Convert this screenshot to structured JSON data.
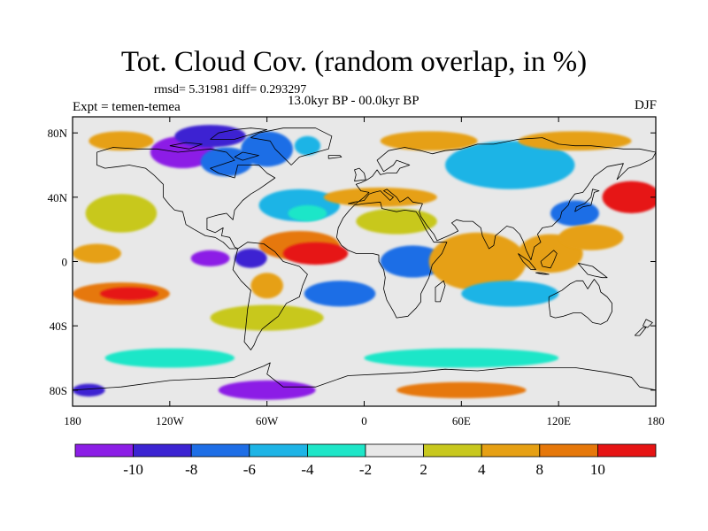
{
  "header": {
    "title": "Tot. Cloud Cov. (random overlap, in %)",
    "stats": "rmsd= 5.31981 diff= 0.293297",
    "period": "13.0kyr BP - 00.0kyr BP",
    "experiment": "Expt = temen-temea",
    "season": "DJF"
  },
  "map": {
    "projection": "cylindrical equidistant",
    "lon_range": [
      -180,
      180
    ],
    "lat_range": [
      -90,
      90
    ],
    "lon_ticks": [
      {
        "value": -180,
        "label": "180"
      },
      {
        "value": -120,
        "label": "120W"
      },
      {
        "value": -60,
        "label": "60W"
      },
      {
        "value": 0,
        "label": "0"
      },
      {
        "value": 60,
        "label": "60E"
      },
      {
        "value": 120,
        "label": "120E"
      },
      {
        "value": 180,
        "label": "180"
      }
    ],
    "lat_ticks": [
      {
        "value": 80,
        "label": "80N"
      },
      {
        "value": 40,
        "label": "40N"
      },
      {
        "value": 0,
        "label": "0"
      },
      {
        "value": -40,
        "label": "40S"
      },
      {
        "value": -80,
        "label": "80S"
      }
    ],
    "background_color": "#e8e8e8"
  },
  "colorbar": {
    "levels": [
      -10,
      -8,
      -6,
      -4,
      -2,
      2,
      4,
      8,
      10
    ],
    "labels": [
      "-10",
      "-8",
      "-6",
      "-4",
      "-2",
      "2",
      "4",
      "8",
      "10"
    ],
    "colors": [
      "#8c1ee6",
      "#3c24d2",
      "#1e6ee6",
      "#1eb4e6",
      "#1ee6c8",
      "#e8e8e8",
      "#c8c81e",
      "#e6a014",
      "#e6780a",
      "#e61414"
    ]
  },
  "anomalies": [
    {
      "lon": -112,
      "lat": 68,
      "rx": 20,
      "ry": 10,
      "color": "#8c1ee6"
    },
    {
      "lon": -95,
      "lat": 78,
      "rx": 22,
      "ry": 7,
      "color": "#3c24d2"
    },
    {
      "lon": -85,
      "lat": 62,
      "rx": 16,
      "ry": 9,
      "color": "#1e6ee6"
    },
    {
      "lon": -60,
      "lat": 70,
      "rx": 16,
      "ry": 11,
      "color": "#1e6ee6"
    },
    {
      "lon": -35,
      "lat": 72,
      "rx": 8,
      "ry": 6,
      "color": "#1eb4e6"
    },
    {
      "lon": -150,
      "lat": 30,
      "rx": 22,
      "ry": 12,
      "color": "#c8c81e"
    },
    {
      "lon": -165,
      "lat": 5,
      "rx": 15,
      "ry": 6,
      "color": "#e6a014"
    },
    {
      "lon": -150,
      "lat": -20,
      "rx": 30,
      "ry": 7,
      "color": "#e6780a"
    },
    {
      "lon": -145,
      "lat": -20,
      "rx": 18,
      "ry": 4,
      "color": "#e61414"
    },
    {
      "lon": -60,
      "lat": -35,
      "rx": 35,
      "ry": 8,
      "color": "#c8c81e"
    },
    {
      "lon": -40,
      "lat": 35,
      "rx": 25,
      "ry": 10,
      "color": "#1eb4e6"
    },
    {
      "lon": -35,
      "lat": 30,
      "rx": 12,
      "ry": 5,
      "color": "#1ee6c8"
    },
    {
      "lon": -40,
      "lat": 10,
      "rx": 25,
      "ry": 9,
      "color": "#e6780a"
    },
    {
      "lon": -30,
      "lat": 5,
      "rx": 20,
      "ry": 7,
      "color": "#e61414"
    },
    {
      "lon": -95,
      "lat": 2,
      "rx": 12,
      "ry": 5,
      "color": "#8c1ee6"
    },
    {
      "lon": -70,
      "lat": 2,
      "rx": 10,
      "ry": 6,
      "color": "#3c24d2"
    },
    {
      "lon": -60,
      "lat": -15,
      "rx": 10,
      "ry": 8,
      "color": "#e6a014"
    },
    {
      "lon": -15,
      "lat": -20,
      "rx": 22,
      "ry": 8,
      "color": "#1e6ee6"
    },
    {
      "lon": 30,
      "lat": 0,
      "rx": 20,
      "ry": 10,
      "color": "#1e6ee6"
    },
    {
      "lon": 20,
      "lat": 25,
      "rx": 25,
      "ry": 8,
      "color": "#c8c81e"
    },
    {
      "lon": 10,
      "lat": 40,
      "rx": 35,
      "ry": 6,
      "color": "#e6a014"
    },
    {
      "lon": 70,
      "lat": 0,
      "rx": 30,
      "ry": 18,
      "color": "#e6a014"
    },
    {
      "lon": 90,
      "lat": -20,
      "rx": 30,
      "ry": 8,
      "color": "#1eb4e6"
    },
    {
      "lon": 115,
      "lat": 5,
      "rx": 20,
      "ry": 12,
      "color": "#e6a014"
    },
    {
      "lon": 130,
      "lat": 30,
      "rx": 15,
      "ry": 8,
      "color": "#1e6ee6"
    },
    {
      "lon": 165,
      "lat": 40,
      "rx": 18,
      "ry": 10,
      "color": "#e61414"
    },
    {
      "lon": 140,
      "lat": 15,
      "rx": 20,
      "ry": 8,
      "color": "#e6a014"
    },
    {
      "lon": 90,
      "lat": 60,
      "rx": 40,
      "ry": 15,
      "color": "#1eb4e6"
    },
    {
      "lon": 40,
      "lat": 75,
      "rx": 30,
      "ry": 6,
      "color": "#e6a014"
    },
    {
      "lon": 130,
      "lat": 75,
      "rx": 35,
      "ry": 6,
      "color": "#e6a014"
    },
    {
      "lon": -150,
      "lat": 75,
      "rx": 20,
      "ry": 6,
      "color": "#e6a014"
    },
    {
      "lon": -120,
      "lat": -60,
      "rx": 40,
      "ry": 6,
      "color": "#1ee6c8"
    },
    {
      "lon": 60,
      "lat": -60,
      "rx": 60,
      "ry": 6,
      "color": "#1ee6c8"
    },
    {
      "lon": -60,
      "lat": -80,
      "rx": 30,
      "ry": 6,
      "color": "#8c1ee6"
    },
    {
      "lon": 60,
      "lat": -80,
      "rx": 40,
      "ry": 5,
      "color": "#e6780a"
    },
    {
      "lon": -170,
      "lat": -80,
      "rx": 10,
      "ry": 4,
      "color": "#3c24d2"
    }
  ],
  "coastlines": [
    [
      [
        -165,
        68
      ],
      [
        -155,
        71
      ],
      [
        -140,
        70
      ],
      [
        -128,
        70
      ],
      [
        -115,
        68
      ],
      [
        -95,
        70
      ],
      [
        -85,
        68
      ],
      [
        -80,
        63
      ],
      [
        -95,
        58
      ],
      [
        -90,
        55
      ],
      [
        -80,
        52
      ],
      [
        -78,
        60
      ],
      [
        -65,
        60
      ],
      [
        -60,
        55
      ],
      [
        -55,
        52
      ],
      [
        -65,
        45
      ],
      [
        -70,
        42
      ],
      [
        -75,
        38
      ],
      [
        -80,
        32
      ],
      [
        -81,
        26
      ],
      [
        -85,
        30
      ],
      [
        -90,
        29
      ],
      [
        -97,
        27
      ],
      [
        -97,
        20
      ],
      [
        -92,
        18
      ],
      [
        -87,
        21
      ],
      [
        -88,
        16
      ],
      [
        -83,
        15
      ],
      [
        -80,
        9
      ],
      [
        -78,
        8
      ],
      [
        -83,
        8
      ],
      [
        -87,
        12
      ],
      [
        -92,
        15
      ],
      [
        -98,
        16
      ],
      [
        -105,
        20
      ],
      [
        -110,
        23
      ],
      [
        -112,
        31
      ],
      [
        -117,
        32
      ],
      [
        -120,
        35
      ],
      [
        -124,
        40
      ],
      [
        -124,
        48
      ],
      [
        -130,
        54
      ],
      [
        -135,
        58
      ],
      [
        -145,
        60
      ],
      [
        -152,
        59
      ],
      [
        -160,
        58
      ],
      [
        -165,
        60
      ],
      [
        -165,
        68
      ]
    ],
    [
      [
        -78,
        8
      ],
      [
        -72,
        12
      ],
      [
        -62,
        11
      ],
      [
        -55,
        6
      ],
      [
        -50,
        0
      ],
      [
        -40,
        -3
      ],
      [
        -35,
        -8
      ],
      [
        -38,
        -15
      ],
      [
        -40,
        -22
      ],
      [
        -48,
        -26
      ],
      [
        -53,
        -34
      ],
      [
        -58,
        -38
      ],
      [
        -63,
        -42
      ],
      [
        -66,
        -47
      ],
      [
        -68,
        -52
      ],
      [
        -70,
        -55
      ],
      [
        -74,
        -50
      ],
      [
        -73,
        -40
      ],
      [
        -72,
        -30
      ],
      [
        -70,
        -18
      ],
      [
        -76,
        -12
      ],
      [
        -81,
        -5
      ],
      [
        -80,
        0
      ],
      [
        -78,
        8
      ]
    ],
    [
      [
        -45,
        60
      ],
      [
        -40,
        65
      ],
      [
        -22,
        70
      ],
      [
        -20,
        78
      ],
      [
        -30,
        83
      ],
      [
        -50,
        83
      ],
      [
        -65,
        80
      ],
      [
        -70,
        77
      ],
      [
        -58,
        75
      ],
      [
        -55,
        70
      ],
      [
        -50,
        65
      ],
      [
        -45,
        60
      ]
    ],
    [
      [
        -10,
        36
      ],
      [
        -5,
        36
      ],
      [
        0,
        40
      ],
      [
        3,
        43
      ],
      [
        -2,
        44
      ],
      [
        -5,
        48
      ],
      [
        -2,
        49
      ],
      [
        2,
        51
      ],
      [
        5,
        53
      ],
      [
        8,
        57
      ],
      [
        10,
        54
      ],
      [
        14,
        55
      ],
      [
        20,
        55
      ],
      [
        22,
        58
      ],
      [
        28,
        60
      ],
      [
        20,
        63
      ],
      [
        18,
        60
      ],
      [
        12,
        56
      ],
      [
        8,
        63
      ],
      [
        15,
        69
      ],
      [
        25,
        71
      ],
      [
        35,
        69
      ],
      [
        42,
        67
      ],
      [
        50,
        69
      ],
      [
        60,
        70
      ],
      [
        70,
        73
      ],
      [
        80,
        73
      ],
      [
        95,
        76
      ],
      [
        110,
        77
      ],
      [
        120,
        73
      ],
      [
        130,
        72
      ],
      [
        140,
        72
      ],
      [
        150,
        71
      ],
      [
        160,
        70
      ],
      [
        170,
        70
      ],
      [
        180,
        68
      ],
      [
        178,
        64
      ],
      [
        170,
        60
      ],
      [
        163,
        58
      ],
      [
        156,
        51
      ],
      [
        160,
        61
      ],
      [
        150,
        59
      ],
      [
        142,
        53
      ],
      [
        138,
        47
      ],
      [
        135,
        43
      ],
      [
        130,
        42
      ],
      [
        127,
        38
      ],
      [
        126,
        35
      ],
      [
        122,
        31
      ],
      [
        121,
        27
      ],
      [
        116,
        22
      ],
      [
        110,
        21
      ],
      [
        107,
        17
      ],
      [
        109,
        12
      ],
      [
        105,
        9
      ],
      [
        103,
        1
      ],
      [
        100,
        7
      ],
      [
        98,
        13
      ],
      [
        96,
        17
      ],
      [
        92,
        21
      ],
      [
        88,
        22
      ],
      [
        81,
        16
      ],
      [
        80,
        10
      ],
      [
        77,
        8
      ],
      [
        73,
        16
      ],
      [
        72,
        21
      ],
      [
        67,
        25
      ],
      [
        61,
        25
      ],
      [
        57,
        26
      ],
      [
        54,
        24
      ],
      [
        56,
        22
      ],
      [
        58,
        19
      ],
      [
        52,
        16
      ],
      [
        45,
        13
      ],
      [
        43,
        17
      ],
      [
        39,
        22
      ],
      [
        35,
        28
      ],
      [
        34,
        31
      ],
      [
        36,
        36
      ],
      [
        30,
        37
      ],
      [
        27,
        40
      ],
      [
        24,
        38
      ],
      [
        22,
        37
      ],
      [
        20,
        40
      ],
      [
        14,
        45
      ],
      [
        12,
        44
      ],
      [
        18,
        40
      ],
      [
        16,
        38
      ],
      [
        10,
        44
      ],
      [
        6,
        43
      ],
      [
        3,
        42
      ],
      [
        0,
        38
      ],
      [
        -6,
        37
      ],
      [
        -10,
        36
      ]
    ],
    [
      [
        -17,
        15
      ],
      [
        -16,
        21
      ],
      [
        -13,
        27
      ],
      [
        -9,
        32
      ],
      [
        -6,
        35
      ],
      [
        0,
        36
      ],
      [
        10,
        37
      ],
      [
        11,
        33
      ],
      [
        20,
        31
      ],
      [
        25,
        32
      ],
      [
        32,
        31
      ],
      [
        34,
        28
      ],
      [
        38,
        20
      ],
      [
        43,
        12
      ],
      [
        51,
        12
      ],
      [
        48,
        5
      ],
      [
        42,
        -2
      ],
      [
        40,
        -10
      ],
      [
        35,
        -20
      ],
      [
        35,
        -25
      ],
      [
        32,
        -29
      ],
      [
        27,
        -34
      ],
      [
        20,
        -35
      ],
      [
        18,
        -31
      ],
      [
        14,
        -24
      ],
      [
        12,
        -17
      ],
      [
        13,
        -10
      ],
      [
        12,
        -5
      ],
      [
        9,
        0
      ],
      [
        9,
        4
      ],
      [
        5,
        5
      ],
      [
        0,
        5
      ],
      [
        -5,
        5
      ],
      [
        -10,
        7
      ],
      [
        -14,
        10
      ],
      [
        -17,
        15
      ]
    ],
    [
      [
        114,
        -22
      ],
      [
        114,
        -26
      ],
      [
        115,
        -34
      ],
      [
        118,
        -35
      ],
      [
        123,
        -34
      ],
      [
        129,
        -32
      ],
      [
        134,
        -32
      ],
      [
        138,
        -35
      ],
      [
        141,
        -38
      ],
      [
        146,
        -39
      ],
      [
        150,
        -37
      ],
      [
        153,
        -31
      ],
      [
        153,
        -26
      ],
      [
        150,
        -22
      ],
      [
        146,
        -19
      ],
      [
        145,
        -15
      ],
      [
        142,
        -11
      ],
      [
        138,
        -17
      ],
      [
        135,
        -12
      ],
      [
        131,
        -12
      ],
      [
        127,
        -14
      ],
      [
        122,
        -18
      ],
      [
        114,
        -22
      ]
    ],
    [
      [
        44,
        -25
      ],
      [
        47,
        -25
      ],
      [
        50,
        -15
      ],
      [
        49,
        -12
      ],
      [
        44,
        -16
      ],
      [
        44,
        -25
      ]
    ],
    [
      [
        -6,
        50
      ],
      [
        1,
        51
      ],
      [
        0,
        55
      ],
      [
        -3,
        58
      ],
      [
        -6,
        57
      ],
      [
        -5,
        54
      ],
      [
        -6,
        50
      ]
    ],
    [
      [
        -22,
        64
      ],
      [
        -14,
        65
      ],
      [
        -15,
        66
      ],
      [
        -22,
        66
      ],
      [
        -22,
        64
      ]
    ],
    [
      [
        130,
        31
      ],
      [
        135,
        34
      ],
      [
        140,
        35
      ],
      [
        141,
        39
      ],
      [
        142,
        43
      ],
      [
        145,
        44
      ],
      [
        141,
        45
      ],
      [
        140,
        40
      ],
      [
        136,
        36
      ],
      [
        131,
        34
      ],
      [
        130,
        31
      ]
    ],
    [
      [
        95,
        5
      ],
      [
        102,
        0
      ],
      [
        106,
        -5
      ],
      [
        103,
        -5
      ],
      [
        98,
        0
      ],
      [
        95,
        5
      ]
    ],
    [
      [
        109,
        -7
      ],
      [
        114,
        -8
      ],
      [
        110,
        -8
      ],
      [
        106,
        -7
      ],
      [
        109,
        -7
      ]
    ],
    [
      [
        109,
        0
      ],
      [
        117,
        7
      ],
      [
        119,
        5
      ],
      [
        117,
        0
      ],
      [
        115,
        -4
      ],
      [
        110,
        -3
      ],
      [
        109,
        0
      ]
    ],
    [
      [
        132,
        -1
      ],
      [
        141,
        -3
      ],
      [
        150,
        -10
      ],
      [
        147,
        -10
      ],
      [
        142,
        -9
      ],
      [
        138,
        -8
      ],
      [
        132,
        -1
      ]
    ],
    [
      [
        172,
        -40
      ],
      [
        175,
        -41
      ],
      [
        178,
        -38
      ],
      [
        174,
        -36
      ],
      [
        172,
        -40
      ]
    ],
    [
      [
        167,
        -46
      ],
      [
        170,
        -46
      ],
      [
        174,
        -41
      ],
      [
        172,
        -41
      ],
      [
        167,
        -46
      ]
    ],
    [
      [
        -180,
        -80
      ],
      [
        -150,
        -78
      ],
      [
        -120,
        -74
      ],
      [
        -100,
        -73
      ],
      [
        -80,
        -72
      ],
      [
        -62,
        -65
      ],
      [
        -58,
        -63
      ],
      [
        -60,
        -70
      ],
      [
        -50,
        -78
      ],
      [
        -30,
        -78
      ],
      [
        -10,
        -71
      ],
      [
        10,
        -70
      ],
      [
        30,
        -69
      ],
      [
        50,
        -67
      ],
      [
        70,
        -68
      ],
      [
        90,
        -66
      ],
      [
        110,
        -66
      ],
      [
        130,
        -66
      ],
      [
        150,
        -69
      ],
      [
        165,
        -72
      ],
      [
        170,
        -78
      ],
      [
        180,
        -80
      ]
    ],
    [
      [
        -80,
        82
      ],
      [
        -70,
        83
      ],
      [
        -60,
        82
      ],
      [
        -80,
        76
      ],
      [
        -95,
        76
      ],
      [
        -90,
        80
      ],
      [
        -80,
        82
      ]
    ],
    [
      [
        -120,
        72
      ],
      [
        -110,
        74
      ],
      [
        -100,
        73
      ],
      [
        -108,
        70
      ],
      [
        -120,
        72
      ]
    ],
    [
      [
        -75,
        68
      ],
      [
        -65,
        66
      ],
      [
        -75,
        63
      ],
      [
        -80,
        65
      ],
      [
        -75,
        68
      ]
    ]
  ]
}
